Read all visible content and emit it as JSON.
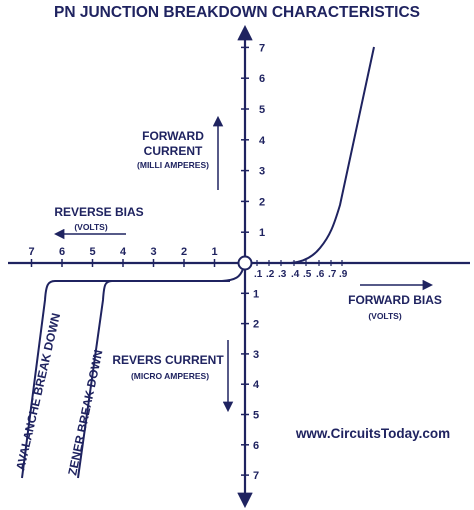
{
  "title": "PN JUNCTION BREAKDOWN CHARACTERISTICS",
  "labels": {
    "forward_current": [
      "FORWARD",
      "CURRENT"
    ],
    "forward_current_unit": "(MILLI AMPERES)",
    "reverse_bias": "REVERSE BIAS",
    "reverse_bias_unit": "(VOLTS)",
    "forward_bias": "FORWARD BIAS",
    "forward_bias_unit": "(VOLTS)",
    "reverse_current": "REVERS CURRENT",
    "reverse_current_unit": "(MICRO AMPERES)",
    "avalanche": "AVALANCHE BREAK DOWN",
    "zener": "ZENER BREAK DOWN",
    "website": "www.CircuitsToday.com"
  },
  "colors": {
    "ink": "#1f2360",
    "background": "#ffffff"
  },
  "chart_data": {
    "type": "line",
    "title": "PN JUNCTION BREAKDOWN CHARACTERISTICS",
    "y_up_ticks": [
      "1",
      "2",
      "3",
      "4",
      "5",
      "6",
      "7"
    ],
    "y_down_ticks": [
      "1",
      "2",
      "3",
      "4",
      "5",
      "6",
      "7"
    ],
    "x_left_ticks": [
      "1",
      "2",
      "3",
      "4",
      "5",
      "6",
      "7"
    ],
    "x_right_ticks": [
      ".1",
      ".2",
      ".3",
      ".4",
      ".5",
      ".6",
      ".7",
      ".9"
    ],
    "series": [
      {
        "name": "forward",
        "x": [
          0,
          0.1,
          0.2,
          0.3,
          0.4,
          0.5,
          0.55,
          0.6,
          0.65,
          0.7,
          0.75,
          0.8,
          0.85,
          0.9,
          0.95,
          1.0
        ],
        "y": [
          0,
          0,
          0,
          0,
          0,
          0.05,
          0.12,
          0.28,
          0.55,
          1.0,
          1.8,
          2.8,
          3.9,
          5.1,
          6.2,
          7.1
        ]
      },
      {
        "name": "avalanche",
        "x": [
          0,
          -0.1,
          -1,
          -3,
          -5,
          -6.5,
          -6.8,
          -7.0,
          -7.1,
          -7.2
        ],
        "y": [
          0,
          -0.6,
          -0.8,
          -0.8,
          -0.8,
          -0.8,
          -0.9,
          -2,
          -4.5,
          -7
        ]
      },
      {
        "name": "zener",
        "x": [
          0,
          -4.7,
          -4.9,
          -5.0,
          -5.1,
          -5.3
        ],
        "y": [
          -0.8,
          -0.8,
          -0.9,
          -2,
          -4.5,
          -7
        ]
      }
    ]
  }
}
